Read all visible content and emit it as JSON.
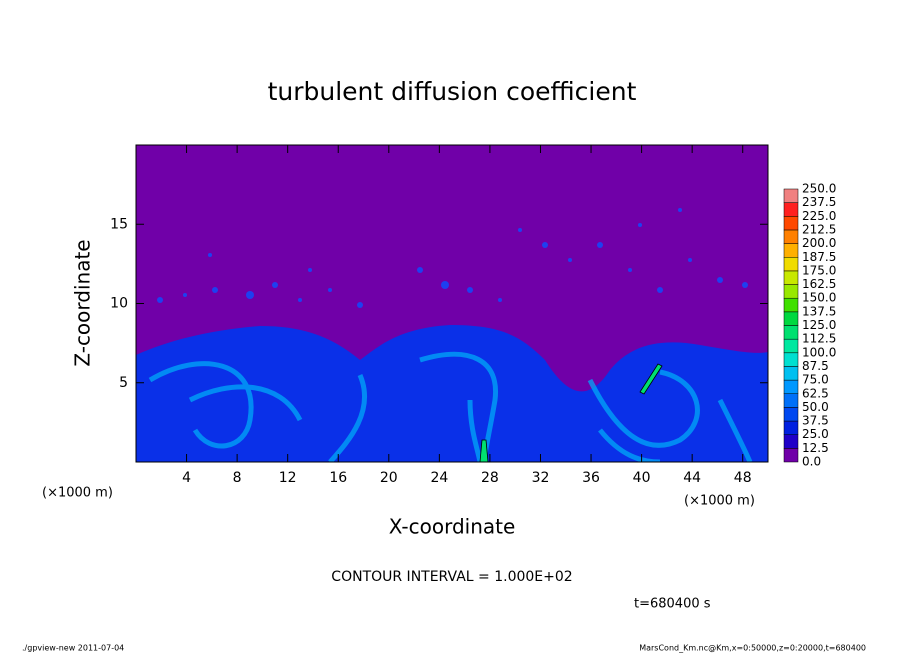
{
  "chart_data": {
    "type": "heatmap",
    "title": "turbulent diffusion coefficient",
    "x_label": "X-coordinate",
    "y_label": "Z-coordinate",
    "x_unit_label": "(×1000 m)",
    "y_unit_label": "(×1000 m)",
    "xlim": [
      0,
      50
    ],
    "xticks": [
      4,
      8,
      12,
      16,
      20,
      24,
      28,
      32,
      36,
      40,
      44,
      48
    ],
    "ylim": [
      0,
      20
    ],
    "yticks": [
      5,
      10,
      15
    ],
    "colorbar": {
      "levels": [
        {
          "value": 0,
          "label": "0.0"
        },
        {
          "value": 12.5,
          "label": "12.5"
        },
        {
          "value": 25,
          "label": "25.0"
        },
        {
          "value": 37.5,
          "label": "37.5"
        },
        {
          "value": 50,
          "label": "50.0"
        },
        {
          "value": 62.5,
          "label": "62.5"
        },
        {
          "value": 75,
          "label": "75.0"
        },
        {
          "value": 87.5,
          "label": "87.5"
        },
        {
          "value": 100,
          "label": "100.0"
        },
        {
          "value": 112.5,
          "label": "112.5"
        },
        {
          "value": 125,
          "label": "125.0"
        },
        {
          "value": 137.5,
          "label": "137.5"
        },
        {
          "value": 150,
          "label": "150.0"
        },
        {
          "value": 162.5,
          "label": "162.5"
        },
        {
          "value": 175,
          "label": "175.0"
        },
        {
          "value": 187.5,
          "label": "187.5"
        },
        {
          "value": 200,
          "label": "200.0"
        },
        {
          "value": 212.5,
          "label": "212.5"
        },
        {
          "value": 225,
          "label": "225.0"
        },
        {
          "value": 237.5,
          "label": "237.5"
        },
        {
          "value": 250,
          "label": "250.0"
        }
      ],
      "colors": [
        "#7000a8",
        "#2000c8",
        "#0020e0",
        "#0048f0",
        "#0070f8",
        "#0098ff",
        "#00c0f0",
        "#00e0d0",
        "#00e8a0",
        "#00e070",
        "#00d840",
        "#40e000",
        "#98e800",
        "#c8e800",
        "#f0dc00",
        "#ffb000",
        "#ff8000",
        "#ff4800",
        "#ff2020",
        "#f08080"
      ]
    },
    "contour_interval": "CONTOUR INTERVAL = 1.000E+02",
    "time_label": "t=680400 s",
    "footer_left": "./gpview-new  2011-07-04",
    "footer_right": "MarsCond_Km.nc@Km,x=0:50000,z=0:20000,t=680400"
  }
}
